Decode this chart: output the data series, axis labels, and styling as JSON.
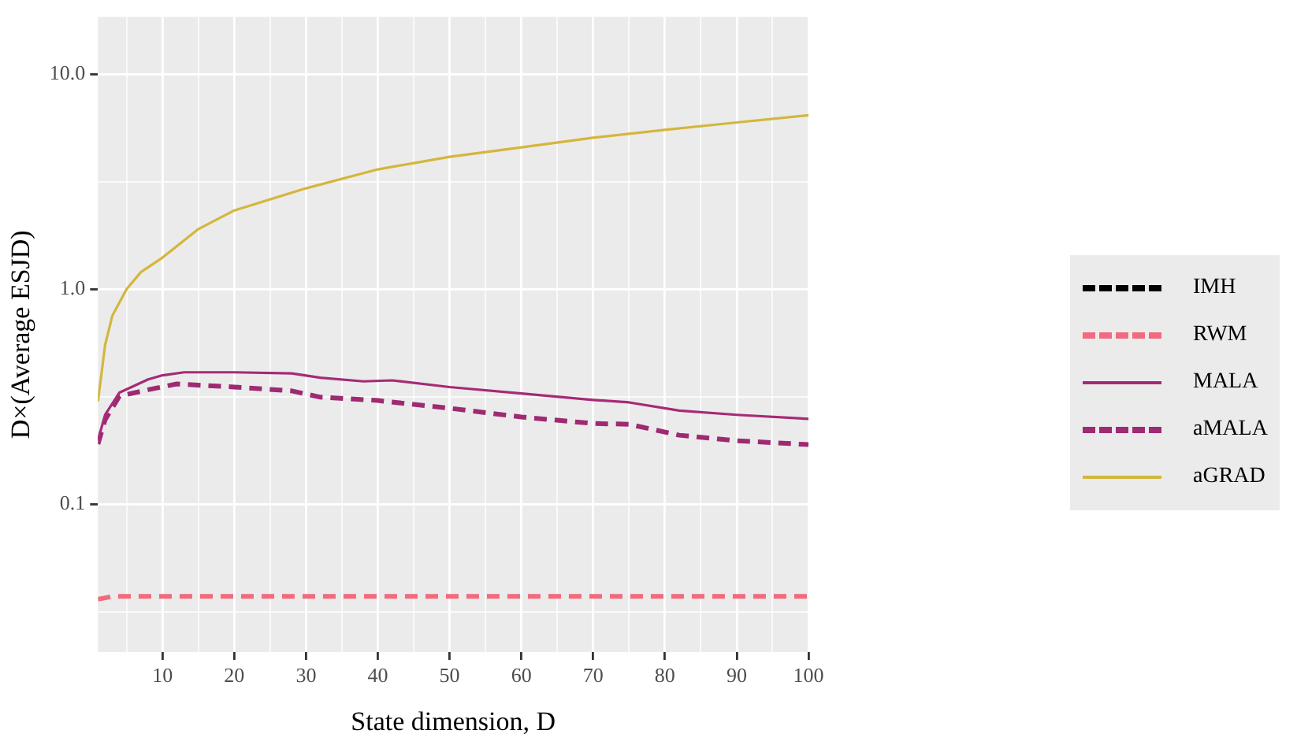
{
  "chart_data": {
    "type": "line",
    "xlabel": "State dimension, D",
    "ylabel": "D×(Average ESJD)",
    "log": "y",
    "grid": true,
    "legend": "right",
    "xlim": [
      1,
      100
    ],
    "xticks": [
      {
        "value": 5,
        "label": null
      },
      10,
      {
        "value": 15,
        "label": null
      },
      20,
      {
        "value": 25,
        "label": null
      },
      30,
      {
        "value": 35,
        "label": null
      },
      40,
      {
        "value": 45,
        "label": null
      },
      50,
      {
        "value": 55,
        "label": null
      },
      60,
      {
        "value": 65,
        "label": null
      },
      70,
      {
        "value": 75,
        "label": null
      },
      80,
      {
        "value": 85,
        "label": null
      },
      90,
      {
        "value": 95,
        "label": null
      },
      100
    ],
    "ylim": [
      0.0205,
      18.4
    ],
    "yticks": [
      {
        "value": 0.0316,
        "label": null
      },
      0.1,
      {
        "value": 0.316,
        "label": null
      },
      {
        "value": 1,
        "label": "1.0"
      },
      {
        "value": 3.16,
        "label": null
      },
      {
        "value": 10,
        "label": "10.0"
      }
    ],
    "series": [
      {
        "name": "IMH",
        "color": "#000000",
        "line_style": "dashed"
      },
      {
        "name": "RWM",
        "color": "#f26a7d",
        "line_style": "dashed",
        "x": [
          1,
          3,
          10,
          50,
          100
        ],
        "values": [
          0.0361,
          0.0372,
          0.0372,
          0.0372,
          0.0372
        ]
      },
      {
        "name": "MALA",
        "color": "#a62a77",
        "line_style": "solid",
        "x": [
          1,
          2,
          4,
          8,
          10,
          13,
          20,
          28,
          32,
          38,
          42,
          50,
          60,
          70,
          75,
          82,
          90,
          100
        ],
        "values": [
          0.198,
          0.26,
          0.33,
          0.38,
          0.397,
          0.41,
          0.41,
          0.405,
          0.387,
          0.372,
          0.376,
          0.35,
          0.327,
          0.305,
          0.297,
          0.272,
          0.26,
          0.249
        ]
      },
      {
        "name": "aMALA",
        "color": "#9e2a72",
        "line_style": "dashed",
        "x": [
          1,
          2,
          4,
          8,
          12,
          20,
          28,
          32,
          40,
          50,
          60,
          70,
          75,
          82,
          90,
          100
        ],
        "values": [
          0.19,
          0.247,
          0.318,
          0.34,
          0.362,
          0.35,
          0.336,
          0.314,
          0.303,
          0.279,
          0.254,
          0.237,
          0.235,
          0.209,
          0.197,
          0.189
        ]
      },
      {
        "name": "aGRAD",
        "color": "#d4b63c",
        "line_style": "solid",
        "x": [
          1,
          2,
          3,
          5,
          7,
          10,
          15,
          20,
          30,
          40,
          50,
          60,
          70,
          80,
          90,
          100
        ],
        "values": [
          0.3,
          0.55,
          0.75,
          1.0,
          1.2,
          1.4,
          1.9,
          2.32,
          2.94,
          3.6,
          4.12,
          4.56,
          5.05,
          5.5,
          5.95,
          6.43
        ]
      }
    ]
  }
}
